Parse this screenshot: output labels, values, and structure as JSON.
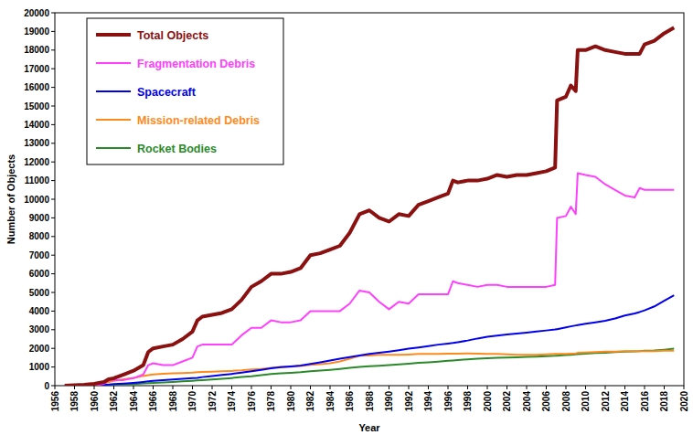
{
  "chart_data": {
    "type": "line",
    "x_label": "Year",
    "y_label": "Number of Objects",
    "x": [
      1957,
      1958,
      1959,
      1960,
      1961,
      1961.5,
      1962,
      1963,
      1964,
      1965,
      1965.5,
      1966,
      1967,
      1968,
      1969,
      1970,
      1970.5,
      1971,
      1972,
      1973,
      1974,
      1975,
      1976,
      1977,
      1978,
      1979,
      1980,
      1981,
      1982,
      1983,
      1984,
      1985,
      1986,
      1987,
      1988,
      1989,
      1990,
      1991,
      1992,
      1993,
      1994,
      1995,
      1996,
      1996.5,
      1997,
      1998,
      1999,
      2000,
      2001,
      2002,
      2003,
      2004,
      2005,
      2006,
      2006.9,
      2007.1,
      2008,
      2008.5,
      2009,
      2009.2,
      2010,
      2011,
      2012,
      2013,
      2014,
      2015,
      2015.5,
      2016,
      2017,
      2018,
      2019
    ],
    "series": [
      {
        "name": "Total Objects",
        "color": "#8b1010",
        "values": [
          0,
          20,
          50,
          100,
          200,
          350,
          400,
          600,
          800,
          1100,
          1800,
          2000,
          2100,
          2200,
          2500,
          2900,
          3500,
          3700,
          3800,
          3900,
          4100,
          4600,
          5300,
          5600,
          6000,
          6000,
          6100,
          6300,
          7000,
          7100,
          7300,
          7500,
          8200,
          9200,
          9400,
          9000,
          8800,
          9200,
          9100,
          9700,
          9900,
          10100,
          10300,
          11000,
          10900,
          11000,
          11000,
          11100,
          11300,
          11200,
          11300,
          11300,
          11400,
          11500,
          11700,
          15300,
          15500,
          16100,
          15800,
          18000,
          18000,
          18200,
          18000,
          17900,
          17800,
          17800,
          17800,
          18300,
          18500,
          18900,
          19200
        ]
      },
      {
        "name": "Fragmentation Debris",
        "color": "#ff40ff",
        "values": [
          0,
          0,
          0,
          0,
          100,
          300,
          300,
          300,
          400,
          600,
          1100,
          1200,
          1100,
          1100,
          1300,
          1500,
          2100,
          2200,
          2200,
          2200,
          2200,
          2700,
          3100,
          3100,
          3500,
          3400,
          3400,
          3500,
          4000,
          4000,
          4000,
          4000,
          4400,
          5100,
          5000,
          4500,
          4100,
          4500,
          4400,
          4900,
          4900,
          4900,
          4900,
          5600,
          5500,
          5400,
          5300,
          5400,
          5400,
          5300,
          5300,
          5300,
          5300,
          5300,
          5400,
          9000,
          9100,
          9600,
          9200,
          11400,
          11300,
          11200,
          10800,
          10500,
          10200,
          10100,
          10600,
          10500,
          10500,
          10500,
          10500
        ]
      },
      {
        "name": "Spacecraft",
        "color": "#0000ee",
        "values": [
          0,
          5,
          15,
          30,
          50,
          60,
          80,
          110,
          150,
          200,
          230,
          260,
          300,
          330,
          370,
          400,
          420,
          460,
          520,
          570,
          630,
          700,
          770,
          850,
          930,
          990,
          1030,
          1080,
          1160,
          1250,
          1350,
          1450,
          1530,
          1620,
          1700,
          1770,
          1830,
          1900,
          1980,
          2050,
          2120,
          2200,
          2260,
          2290,
          2330,
          2420,
          2530,
          2620,
          2680,
          2740,
          2790,
          2840,
          2900,
          2960,
          3010,
          3030,
          3130,
          3180,
          3230,
          3250,
          3320,
          3400,
          3480,
          3600,
          3760,
          3870,
          3950,
          4040,
          4250,
          4550,
          4850
        ]
      },
      {
        "name": "Mission-related Debris",
        "color": "#ff8a1c",
        "values": [
          0,
          10,
          30,
          60,
          120,
          200,
          260,
          340,
          420,
          520,
          560,
          600,
          640,
          660,
          680,
          700,
          720,
          730,
          750,
          770,
          790,
          820,
          870,
          900,
          960,
          1000,
          1020,
          1050,
          1120,
          1150,
          1200,
          1300,
          1450,
          1600,
          1620,
          1650,
          1650,
          1650,
          1670,
          1700,
          1700,
          1700,
          1720,
          1720,
          1720,
          1730,
          1720,
          1700,
          1700,
          1680,
          1650,
          1650,
          1660,
          1680,
          1700,
          1700,
          1700,
          1720,
          1730,
          1760,
          1780,
          1800,
          1820,
          1830,
          1850,
          1850,
          1850,
          1850,
          1850,
          1870,
          1880
        ]
      },
      {
        "name": "Rocket Bodies",
        "color": "#2a8a2a",
        "values": [
          0,
          5,
          10,
          20,
          30,
          40,
          50,
          70,
          90,
          120,
          130,
          150,
          170,
          200,
          230,
          260,
          280,
          300,
          330,
          370,
          410,
          460,
          500,
          560,
          620,
          660,
          690,
          720,
          770,
          810,
          850,
          900,
          950,
          1000,
          1040,
          1070,
          1100,
          1140,
          1180,
          1220,
          1250,
          1290,
          1330,
          1350,
          1370,
          1410,
          1440,
          1470,
          1490,
          1510,
          1520,
          1540,
          1560,
          1580,
          1600,
          1610,
          1640,
          1660,
          1680,
          1690,
          1720,
          1750,
          1770,
          1800,
          1820,
          1840,
          1850,
          1870,
          1890,
          1930,
          1980
        ]
      }
    ],
    "xlim": [
      1956,
      2020
    ],
    "ylim": [
      0,
      20000
    ],
    "xticks": [
      1956,
      1958,
      1960,
      1962,
      1964,
      1966,
      1968,
      1970,
      1972,
      1974,
      1976,
      1978,
      1980,
      1982,
      1984,
      1986,
      1988,
      1990,
      1992,
      1994,
      1996,
      1998,
      2000,
      2002,
      2004,
      2006,
      2008,
      2010,
      2012,
      2014,
      2016,
      2018,
      2020
    ],
    "yticks": [
      0,
      1000,
      2000,
      3000,
      4000,
      5000,
      6000,
      7000,
      8000,
      9000,
      10000,
      11000,
      12000,
      13000,
      14000,
      15000,
      16000,
      17000,
      18000,
      19000,
      20000
    ],
    "grid": false,
    "legend": "upper-left"
  }
}
